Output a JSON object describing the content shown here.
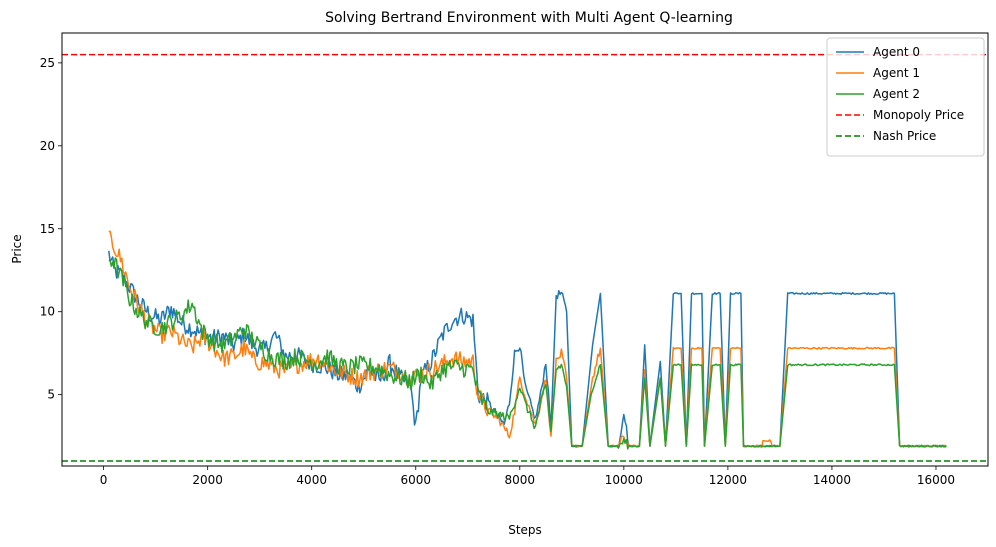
{
  "chart_data": {
    "type": "line",
    "title": "Solving Bertrand Environment with Multi Agent Q-learning",
    "xlabel": "Steps",
    "ylabel": "Price",
    "xlim": [
      -800,
      17000
    ],
    "ylim": [
      0.7,
      26.8
    ],
    "xticks": [
      0,
      2000,
      4000,
      6000,
      8000,
      10000,
      12000,
      14000,
      16000
    ],
    "yticks": [
      5,
      10,
      15,
      20,
      25
    ],
    "grid": false,
    "legend_position": "top-right",
    "series": [
      {
        "name": "Agent 0",
        "color": "#1f77b4",
        "points": [
          [
            100,
            13.5
          ],
          [
            200,
            12.5
          ],
          [
            350,
            12.2
          ],
          [
            500,
            11.5
          ],
          [
            700,
            10.5
          ],
          [
            900,
            9.8
          ],
          [
            1100,
            9.5
          ],
          [
            1300,
            10.2
          ],
          [
            1500,
            9.3
          ],
          [
            1700,
            9.0
          ],
          [
            1900,
            8.6
          ],
          [
            2100,
            8.4
          ],
          [
            2300,
            8.5
          ],
          [
            2500,
            8.0
          ],
          [
            2700,
            8.6
          ],
          [
            2900,
            7.9
          ],
          [
            3100,
            7.7
          ],
          [
            3300,
            8.6
          ],
          [
            3500,
            7.3
          ],
          [
            3700,
            7.4
          ],
          [
            3900,
            7.0
          ],
          [
            4100,
            6.8
          ],
          [
            4300,
            6.6
          ],
          [
            4500,
            6.2
          ],
          [
            4700,
            6.1
          ],
          [
            4900,
            5.5
          ],
          [
            5100,
            6.5
          ],
          [
            5300,
            5.8
          ],
          [
            5500,
            6.9
          ],
          [
            5700,
            6.0
          ],
          [
            5900,
            5.5
          ],
          [
            6000,
            3.0
          ],
          [
            6100,
            6.0
          ],
          [
            6300,
            7.0
          ],
          [
            6500,
            8.5
          ],
          [
            6700,
            9.5
          ],
          [
            6900,
            9.8
          ],
          [
            7100,
            9.5
          ],
          [
            7200,
            5.0
          ],
          [
            7400,
            4.5
          ],
          [
            7600,
            3.6
          ],
          [
            7700,
            3.2
          ],
          [
            7800,
            4.5
          ],
          [
            7900,
            7.5
          ],
          [
            8000,
            8.0
          ],
          [
            8100,
            5.5
          ],
          [
            8300,
            3.5
          ],
          [
            8400,
            5.0
          ],
          [
            8500,
            7.0
          ],
          [
            8600,
            3.0
          ],
          [
            8700,
            11.0
          ],
          [
            8800,
            11.1
          ],
          [
            8900,
            10.0
          ],
          [
            9000,
            1.9
          ],
          [
            9200,
            1.9
          ],
          [
            9400,
            8.0
          ],
          [
            9550,
            11.1
          ],
          [
            9700,
            1.9
          ],
          [
            9900,
            1.9
          ],
          [
            10000,
            4.0
          ],
          [
            10100,
            1.9
          ],
          [
            10300,
            1.9
          ],
          [
            10400,
            8.0
          ],
          [
            10500,
            1.9
          ],
          [
            10700,
            7.0
          ],
          [
            10800,
            1.9
          ],
          [
            10950,
            11.1
          ],
          [
            11100,
            11.1
          ],
          [
            11200,
            1.9
          ],
          [
            11300,
            11.1
          ],
          [
            11500,
            11.1
          ],
          [
            11550,
            1.9
          ],
          [
            11700,
            11.1
          ],
          [
            11850,
            11.1
          ],
          [
            11950,
            1.9
          ],
          [
            12050,
            11.1
          ],
          [
            12250,
            11.1
          ],
          [
            12300,
            1.9
          ],
          [
            13000,
            1.9
          ],
          [
            13150,
            11.1
          ],
          [
            15200,
            11.1
          ],
          [
            15300,
            1.9
          ],
          [
            16200,
            1.9
          ]
        ]
      },
      {
        "name": "Agent 1",
        "color": "#ff7f0e",
        "points": [
          [
            100,
            14.4
          ],
          [
            200,
            14.0
          ],
          [
            350,
            13.0
          ],
          [
            500,
            11.5
          ],
          [
            700,
            10.2
          ],
          [
            900,
            9.2
          ],
          [
            1100,
            8.6
          ],
          [
            1300,
            8.8
          ],
          [
            1500,
            8.2
          ],
          [
            1700,
            7.8
          ],
          [
            1900,
            8.5
          ],
          [
            2100,
            7.9
          ],
          [
            2300,
            7.2
          ],
          [
            2500,
            7.3
          ],
          [
            2700,
            7.8
          ],
          [
            2900,
            7.0
          ],
          [
            3100,
            6.9
          ],
          [
            3300,
            6.6
          ],
          [
            3500,
            6.4
          ],
          [
            3700,
            6.8
          ],
          [
            3900,
            7.0
          ],
          [
            4100,
            7.2
          ],
          [
            4300,
            6.8
          ],
          [
            4500,
            6.4
          ],
          [
            4700,
            6.2
          ],
          [
            4900,
            6.0
          ],
          [
            5100,
            6.3
          ],
          [
            5300,
            6.5
          ],
          [
            5500,
            6.6
          ],
          [
            5700,
            6.4
          ],
          [
            5900,
            6.0
          ],
          [
            6100,
            6.2
          ],
          [
            6300,
            6.5
          ],
          [
            6500,
            6.8
          ],
          [
            6700,
            7.2
          ],
          [
            6900,
            7.0
          ],
          [
            7100,
            7.0
          ],
          [
            7200,
            5.0
          ],
          [
            7400,
            4.0
          ],
          [
            7600,
            3.5
          ],
          [
            7800,
            2.5
          ],
          [
            7900,
            4.0
          ],
          [
            8000,
            6.0
          ],
          [
            8100,
            5.0
          ],
          [
            8300,
            3.2
          ],
          [
            8400,
            4.5
          ],
          [
            8500,
            6.0
          ],
          [
            8600,
            2.5
          ],
          [
            8700,
            7.0
          ],
          [
            8800,
            7.5
          ],
          [
            8900,
            6.0
          ],
          [
            9000,
            1.9
          ],
          [
            9200,
            1.9
          ],
          [
            9400,
            6.0
          ],
          [
            9550,
            7.8
          ],
          [
            9700,
            1.9
          ],
          [
            9900,
            1.9
          ],
          [
            10000,
            2.5
          ],
          [
            10100,
            1.9
          ],
          [
            10300,
            1.9
          ],
          [
            10400,
            6.5
          ],
          [
            10500,
            1.9
          ],
          [
            10700,
            6.0
          ],
          [
            10800,
            1.9
          ],
          [
            10950,
            7.8
          ],
          [
            11100,
            7.8
          ],
          [
            11200,
            1.9
          ],
          [
            11300,
            7.8
          ],
          [
            11500,
            7.8
          ],
          [
            11550,
            1.9
          ],
          [
            11700,
            7.8
          ],
          [
            11850,
            7.8
          ],
          [
            11950,
            1.9
          ],
          [
            12050,
            7.8
          ],
          [
            12250,
            7.8
          ],
          [
            12300,
            1.9
          ],
          [
            12650,
            1.9
          ],
          [
            12700,
            2.2
          ],
          [
            12800,
            2.2
          ],
          [
            12850,
            1.9
          ],
          [
            13000,
            1.9
          ],
          [
            13150,
            7.8
          ],
          [
            15200,
            7.8
          ],
          [
            15300,
            1.9
          ],
          [
            16200,
            1.9
          ]
        ]
      },
      {
        "name": "Agent 2",
        "color": "#2ca02c",
        "points": [
          [
            100,
            13.2
          ],
          [
            200,
            13.0
          ],
          [
            350,
            12.0
          ],
          [
            500,
            10.8
          ],
          [
            700,
            9.8
          ],
          [
            900,
            9.2
          ],
          [
            1100,
            9.0
          ],
          [
            1300,
            9.4
          ],
          [
            1500,
            9.8
          ],
          [
            1700,
            10.5
          ],
          [
            1900,
            8.8
          ],
          [
            2100,
            8.2
          ],
          [
            2300,
            8.0
          ],
          [
            2500,
            8.4
          ],
          [
            2700,
            9.0
          ],
          [
            2900,
            8.2
          ],
          [
            3100,
            7.6
          ],
          [
            3300,
            7.2
          ],
          [
            3500,
            7.0
          ],
          [
            3700,
            7.3
          ],
          [
            3900,
            7.1
          ],
          [
            4100,
            6.9
          ],
          [
            4300,
            7.3
          ],
          [
            4500,
            6.8
          ],
          [
            4700,
            6.6
          ],
          [
            4900,
            6.8
          ],
          [
            5100,
            6.7
          ],
          [
            5300,
            6.6
          ],
          [
            5500,
            6.2
          ],
          [
            5700,
            6.0
          ],
          [
            5900,
            5.8
          ],
          [
            6100,
            6.3
          ],
          [
            6300,
            5.6
          ],
          [
            6500,
            6.5
          ],
          [
            6700,
            6.7
          ],
          [
            6900,
            6.6
          ],
          [
            7100,
            6.5
          ],
          [
            7200,
            5.0
          ],
          [
            7400,
            4.0
          ],
          [
            7600,
            3.8
          ],
          [
            7800,
            3.6
          ],
          [
            7900,
            4.5
          ],
          [
            8000,
            5.5
          ],
          [
            8100,
            4.5
          ],
          [
            8300,
            3.0
          ],
          [
            8400,
            4.5
          ],
          [
            8500,
            5.5
          ],
          [
            8600,
            2.8
          ],
          [
            8700,
            6.5
          ],
          [
            8800,
            6.8
          ],
          [
            8900,
            5.5
          ],
          [
            9000,
            1.9
          ],
          [
            9200,
            1.9
          ],
          [
            9400,
            5.5
          ],
          [
            9550,
            6.8
          ],
          [
            9700,
            1.9
          ],
          [
            9900,
            1.9
          ],
          [
            10000,
            2.2
          ],
          [
            10100,
            1.9
          ],
          [
            10300,
            1.9
          ],
          [
            10400,
            6.0
          ],
          [
            10500,
            1.9
          ],
          [
            10700,
            6.0
          ],
          [
            10800,
            1.9
          ],
          [
            10950,
            6.8
          ],
          [
            11100,
            6.8
          ],
          [
            11200,
            1.9
          ],
          [
            11300,
            6.8
          ],
          [
            11500,
            6.8
          ],
          [
            11550,
            1.9
          ],
          [
            11700,
            6.8
          ],
          [
            11850,
            6.8
          ],
          [
            11950,
            1.9
          ],
          [
            12050,
            6.8
          ],
          [
            12250,
            6.8
          ],
          [
            12300,
            1.9
          ],
          [
            13000,
            1.9
          ],
          [
            13150,
            6.8
          ],
          [
            15200,
            6.8
          ],
          [
            15300,
            1.9
          ],
          [
            16200,
            1.9
          ]
        ]
      },
      {
        "name": "Monopoly Price",
        "color": "#ff0000",
        "dashed": true,
        "y": 25.5
      },
      {
        "name": "Nash Price",
        "color": "#008000",
        "dashed": true,
        "y": 1.0
      }
    ]
  }
}
